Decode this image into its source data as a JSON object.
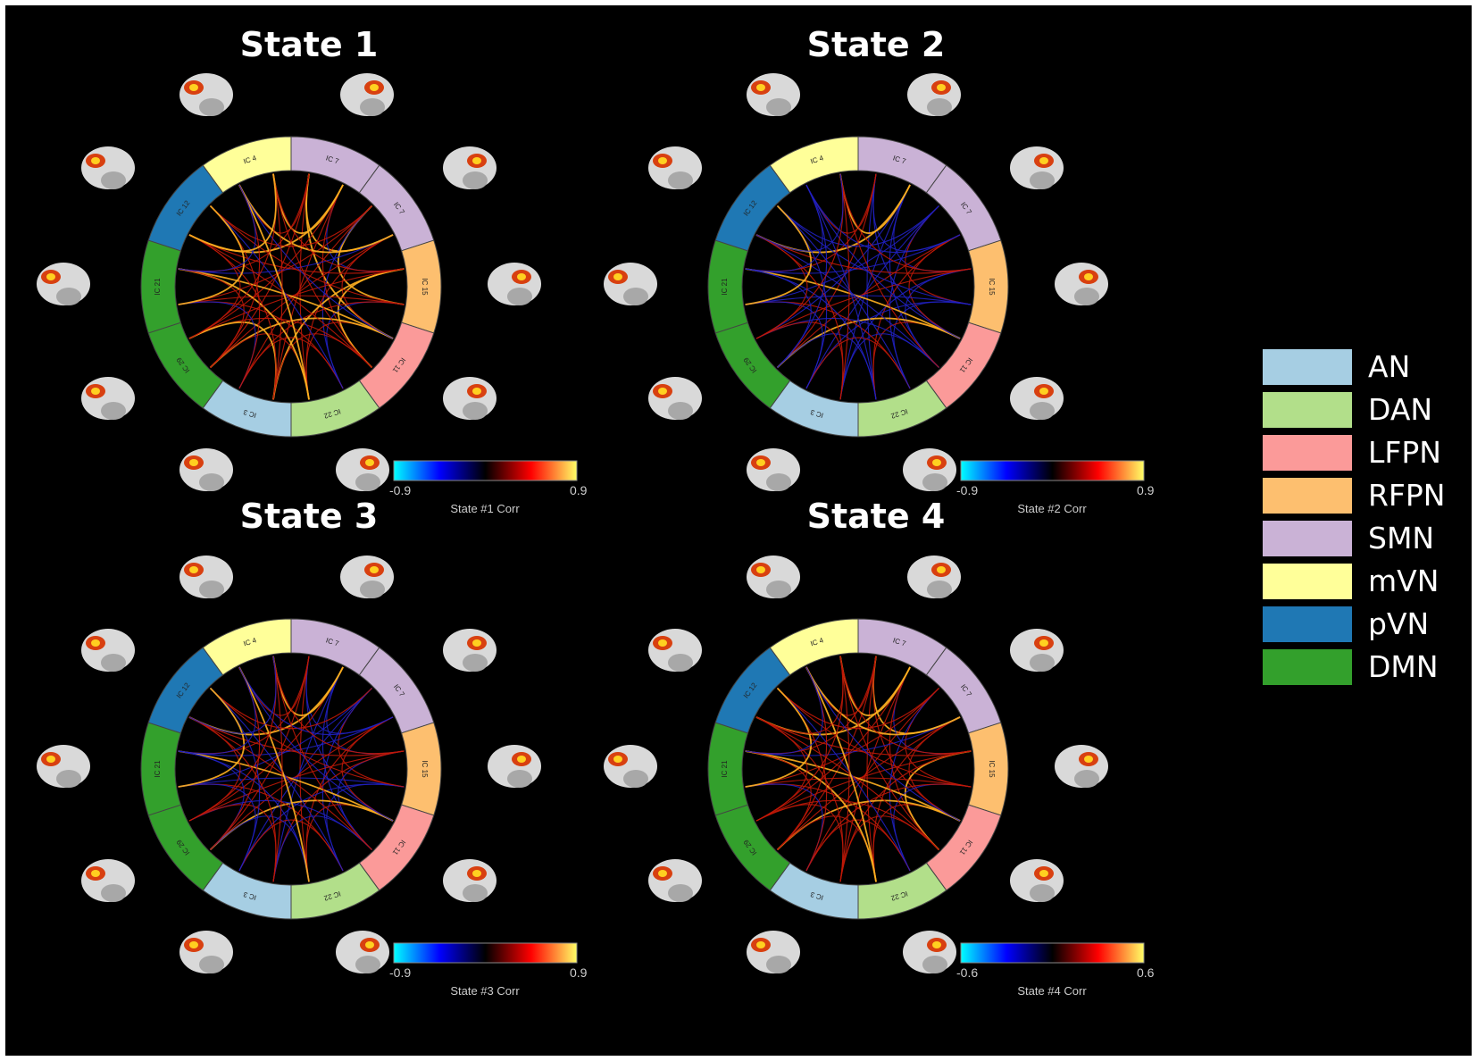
{
  "colors": {
    "AN": "#a6cee3",
    "DAN": "#b2df8a",
    "LFPN": "#fb9a99",
    "RFPN": "#fdbf6f",
    "SMN": "#cab2d6",
    "mVN": "#ffff99",
    "pVN": "#1f78b4",
    "DMN": "#33a02c"
  },
  "legend": [
    {
      "label": "AN",
      "network": "AN"
    },
    {
      "label": "DAN",
      "network": "DAN"
    },
    {
      "label": "LFPN",
      "network": "LFPN"
    },
    {
      "label": "RFPN",
      "network": "RFPN"
    },
    {
      "label": "SMN",
      "network": "SMN"
    },
    {
      "label": "mVN",
      "network": "mVN"
    },
    {
      "label": "pVN",
      "network": "pVN"
    },
    {
      "label": "DMN",
      "network": "DMN"
    }
  ],
  "ring_segments": [
    {
      "network": "SMN",
      "label": "IC 7"
    },
    {
      "network": "SMN",
      "label": "IC 7"
    },
    {
      "network": "RFPN",
      "label": "IC 15"
    },
    {
      "network": "LFPN",
      "label": "IC 11"
    },
    {
      "network": "DAN",
      "label": "IC 22"
    },
    {
      "network": "AN",
      "label": "IC 3"
    },
    {
      "network": "DMN",
      "label": "IC 29"
    },
    {
      "network": "DMN",
      "label": "IC 21"
    },
    {
      "network": "pVN",
      "label": "IC 12"
    },
    {
      "network": "mVN",
      "label": "IC 4"
    }
  ],
  "states": [
    {
      "title": "State 1",
      "cbar_min": "-0.9",
      "cbar_max": "0.9",
      "cbar_label": "State #1 Corr",
      "blue_level": 0.05,
      "yellow_level": 0.25
    },
    {
      "title": "State 2",
      "cbar_min": "-0.9",
      "cbar_max": "0.9",
      "cbar_label": "State #2 Corr",
      "blue_level": 0.45,
      "yellow_level": 0.15
    },
    {
      "title": "State 3",
      "cbar_min": "-0.9",
      "cbar_max": "0.9",
      "cbar_label": "State #3 Corr",
      "blue_level": 0.4,
      "yellow_level": 0.15
    },
    {
      "title": "State 4",
      "cbar_min": "-0.6",
      "cbar_max": "0.6",
      "cbar_label": "State #4 Corr",
      "blue_level": 0.1,
      "yellow_level": 0.1
    }
  ]
}
